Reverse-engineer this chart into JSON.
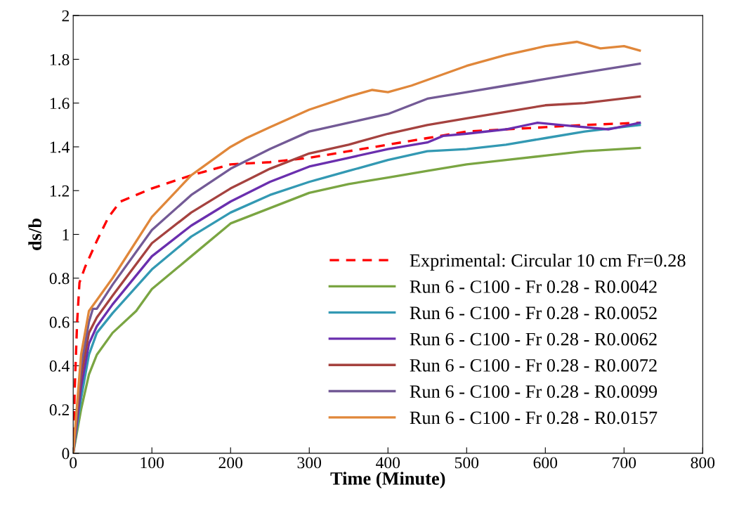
{
  "chart_data": {
    "type": "line",
    "xlabel": "Time (Minute)",
    "ylabel": "ds/b",
    "xlim": [
      0,
      800
    ],
    "xticks": [
      0,
      100,
      200,
      300,
      400,
      500,
      600,
      700,
      800
    ],
    "ylim": [
      0,
      2
    ],
    "yticks": [
      0,
      0.2,
      0.4,
      0.6,
      0.8,
      1,
      1.2,
      1.4,
      1.6,
      1.8,
      2
    ],
    "grid": false,
    "legend": "bottom right",
    "marker": "none",
    "series": [
      {
        "name": "Exprimental: Circular 10 cm Fr=0.28",
        "color": "#ff0000",
        "line_style": "dashed",
        "x": [
          0,
          2,
          5,
          8,
          15,
          30,
          45,
          60,
          100,
          150,
          200,
          250,
          300,
          350,
          400,
          450,
          500,
          550,
          600,
          650,
          720
        ],
        "values": [
          0,
          0.3,
          0.6,
          0.78,
          0.85,
          0.97,
          1.08,
          1.15,
          1.21,
          1.27,
          1.32,
          1.33,
          1.35,
          1.38,
          1.41,
          1.44,
          1.47,
          1.48,
          1.49,
          1.5,
          1.51
        ]
      },
      {
        "name": "Run 6 - C100 - Fr 0.28 - R0.0042",
        "color": "#7aa542",
        "x": [
          0,
          10,
          20,
          30,
          50,
          80,
          100,
          150,
          200,
          250,
          300,
          350,
          400,
          450,
          500,
          550,
          600,
          650,
          720
        ],
        "values": [
          0,
          0.2,
          0.36,
          0.45,
          0.55,
          0.65,
          0.75,
          0.9,
          1.05,
          1.12,
          1.19,
          1.23,
          1.26,
          1.29,
          1.32,
          1.34,
          1.36,
          1.38,
          1.395
        ]
      },
      {
        "name": "Run 6 - C100 - Fr 0.28 - R0.0052",
        "color": "#3399b3",
        "x": [
          0,
          10,
          20,
          30,
          50,
          100,
          150,
          200,
          250,
          300,
          350,
          400,
          450,
          500,
          550,
          600,
          650,
          720
        ],
        "values": [
          0,
          0.25,
          0.45,
          0.55,
          0.64,
          0.84,
          0.99,
          1.1,
          1.18,
          1.24,
          1.29,
          1.34,
          1.38,
          1.39,
          1.41,
          1.44,
          1.47,
          1.5
        ]
      },
      {
        "name": "Run 6 - C100 - Fr 0.28 - R0.0062",
        "color": "#6a2fae",
        "x": [
          0,
          10,
          20,
          30,
          50,
          100,
          150,
          200,
          250,
          300,
          350,
          400,
          450,
          470,
          500,
          550,
          590,
          620,
          680,
          720
        ],
        "values": [
          0,
          0.3,
          0.5,
          0.58,
          0.68,
          0.9,
          1.04,
          1.15,
          1.24,
          1.31,
          1.35,
          1.39,
          1.42,
          1.45,
          1.46,
          1.48,
          1.51,
          1.5,
          1.48,
          1.51
        ]
      },
      {
        "name": "Run 6 - C100 - Fr 0.28 - R0.0072",
        "color": "#a5423f",
        "x": [
          0,
          10,
          20,
          30,
          50,
          100,
          150,
          200,
          250,
          300,
          350,
          400,
          450,
          500,
          550,
          600,
          650,
          720
        ],
        "values": [
          0,
          0.35,
          0.55,
          0.62,
          0.72,
          0.96,
          1.1,
          1.21,
          1.3,
          1.37,
          1.41,
          1.46,
          1.5,
          1.53,
          1.56,
          1.59,
          1.6,
          1.63
        ]
      },
      {
        "name": "Run 6 - C100 - Fr 0.28 - R0.0099",
        "color": "#735a96",
        "x": [
          0,
          10,
          20,
          25,
          30,
          50,
          100,
          150,
          200,
          250,
          300,
          350,
          400,
          450,
          500,
          550,
          600,
          650,
          720
        ],
        "values": [
          0,
          0.4,
          0.6,
          0.66,
          0.66,
          0.77,
          1.02,
          1.18,
          1.3,
          1.39,
          1.47,
          1.51,
          1.55,
          1.62,
          1.65,
          1.68,
          1.71,
          1.74,
          1.78
        ]
      },
      {
        "name": "Run 6 - C100 - Fr 0.28 - R0.0157",
        "color": "#e0873a",
        "x": [
          0,
          10,
          20,
          30,
          50,
          100,
          150,
          200,
          220,
          250,
          300,
          350,
          380,
          400,
          430,
          500,
          550,
          600,
          640,
          670,
          700,
          720
        ],
        "values": [
          0,
          0.45,
          0.65,
          0.7,
          0.8,
          1.08,
          1.27,
          1.4,
          1.44,
          1.49,
          1.57,
          1.63,
          1.66,
          1.65,
          1.68,
          1.77,
          1.82,
          1.86,
          1.88,
          1.85,
          1.86,
          1.84
        ]
      }
    ]
  }
}
